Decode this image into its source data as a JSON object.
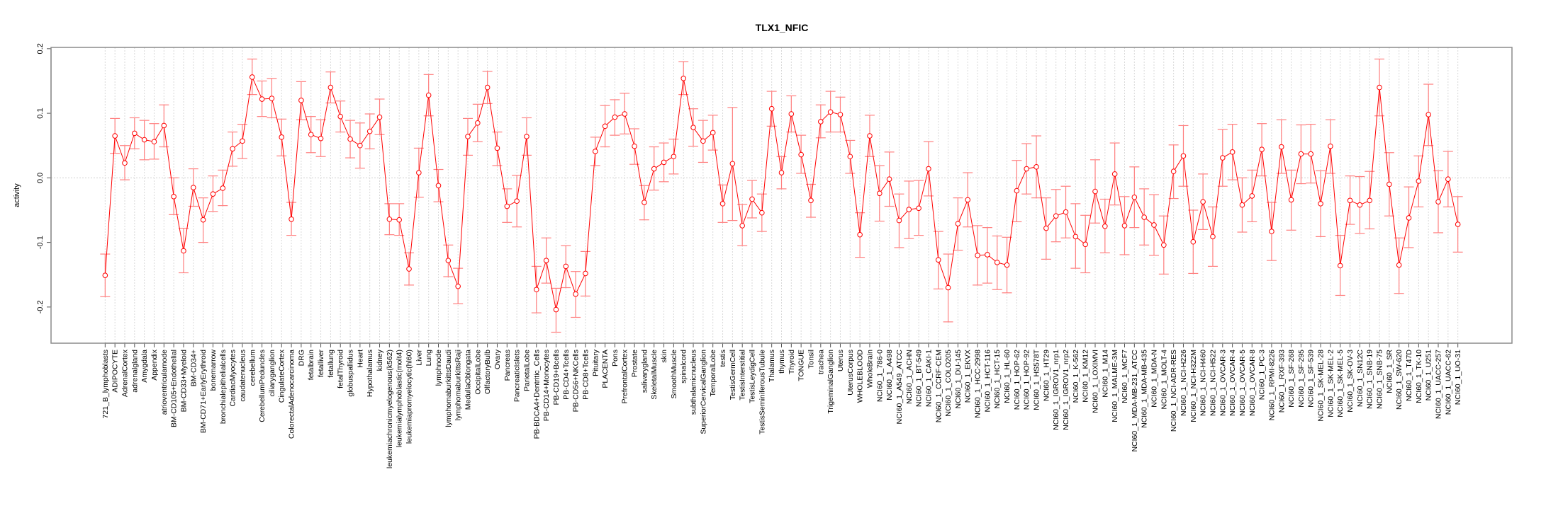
{
  "chart_data": {
    "type": "line",
    "title": "TLX1_NFIC",
    "xlabel": "",
    "ylabel": "activity",
    "ylim": [
      -0.256,
      0.202
    ],
    "yticks": [
      "-0.2",
      "-0.1",
      "0.0",
      "0.1",
      "0.2"
    ],
    "ytick_values": [
      -0.2,
      -0.1,
      0.0,
      0.1,
      0.2
    ],
    "grid": true,
    "series_color": "#ff0000",
    "errorbar_color": "#ff8080",
    "grid_color": "#d9d9d9",
    "categories": [
      "721_B_lymphoblasts",
      "ADIPOCYTE",
      "AdrenalCortex",
      "adrenalgland",
      "Amygdala",
      "Appendix",
      "atrioventricularnode",
      "BM-CD105+Endothelial",
      "BM-CD33+Myeloid",
      "BM-CD34+",
      "BM-CD71+EarlyErythroid",
      "bonemarrow",
      "bronchialepithelialcells",
      "CardiacMyocytes",
      "caudatenucleus",
      "cerebellum",
      "CerebellumPeduncles",
      "ciliaryganglion",
      "CingulateCortex",
      "ColorectalAdenocarcinoma",
      "DRG",
      "fetalbrain",
      "fetalliver",
      "fetallung",
      "fetalThyroid",
      "globuspallidus",
      "Heart",
      "Hypothalamus",
      "kidney",
      "leukemiachronicmyelogenous(k562)",
      "leukemialymphoblastic(molt4)",
      "leukemiapromyelocytic(hl60)",
      "Liver",
      "Lung",
      "lymphnode",
      "lymphomaburkittsDaudi",
      "lymphomaburkittsRaji",
      "MedullaOblongata",
      "OccipitalLobe",
      "OlfactoryBulb",
      "Ovary",
      "Pancreas",
      "PancreaticIslets",
      "ParietalLobe",
      "PB-BDCA4+Dentritic_Cells",
      "PB-CD14+Monocytes",
      "PB-CD19+Bcells",
      "PB-CD4+Tcells",
      "PB-CD56+NKCells",
      "PB-CD8+Tcells",
      "Pituitary",
      "PLACENTA",
      "Pons",
      "PrefrontalCortex",
      "Prostate",
      "salivarygland",
      "SkeletalMuscle",
      "skin",
      "SmoothMuscle",
      "spinalcord",
      "subthalamicnucleus",
      "SuperiorCervicalGanglion",
      "TemporalLobe",
      "testis",
      "TestisGermCell",
      "TestisInterstitial",
      "TestisLeydigCell",
      "TestisSeminiferousTubule",
      "Thalamus",
      "thymus",
      "Thyroid",
      "TONGUE",
      "Tonsil",
      "trachea",
      "TrigeminalGanglion",
      "Uterus",
      "UterusCorpus",
      "WHOLEBLOOD",
      "WholeBrain",
      "NCI60_1_786-0",
      "NCI60_1_A498",
      "NCI60_1_A549_ATCC",
      "NCI60_1_ACHN",
      "NCI60_1_BT-549",
      "NCI60_1_CAKI-1",
      "NCI60_1_CCRF-CEM",
      "NCI60_1_COLO205",
      "NCI60_1_DU-145",
      "NCI60_1_EKVX",
      "NCI60_1_HCC-2998",
      "NCI60_1_HCT-116",
      "NCI60_1_HCT-15",
      "NCI60_1_HL-60",
      "NCI60_1_HOP-62",
      "NCI60_1_HOP-92",
      "NCI60_1_HS578T",
      "NCI60_1_HT29",
      "NCI60_1_IGROV1_nrp1",
      "NCI60_1_IGROV1_nrp2",
      "NCI60_1_K-562",
      "NCI60_1_KM12",
      "NCI60_1_LOXIMVI",
      "NCI60_1_M14",
      "NCI60_1_MALME-3M",
      "NCI60_1_MCF7",
      "NCI60_1_MDA-MB-231_ATCC",
      "NCI60_1_MDA-MB-435",
      "NCI60_1_MDA-N",
      "NCI60_1_MOLT-4",
      "NCI60_1_NCI-ADR-RES",
      "NCI60_1_NCI-H226",
      "NCI60_1_NCI-H322M",
      "NCI60_1_NCI-H460",
      "NCI60_1_NCI-H522",
      "NCI60_1_OVCAR-3",
      "NCI60_1_OVCAR-4",
      "NCI60_1_OVCAR-5",
      "NCI60_1_OVCAR-8",
      "NCI60_1_PC-3",
      "NCI60_1_RPMI-8226",
      "NCI60_1_RXF-393",
      "NCI60_1_SF-268",
      "NCI60_1_SF-295",
      "NCI60_1_SF-539",
      "NCI60_1_SK-MEL-28",
      "NCI60_1_SK-MEL-2",
      "NCI60_1_SK-MEL-5",
      "NCI60_1_SK-OV-3",
      "NCI60_1_SN12C",
      "NCI60_1_SNB-19",
      "NCI60_1_SNB-75",
      "NCI60_1_SR",
      "NCI60_1_SW-620",
      "NCI60_1_T47D",
      "NCI60_1_TK-10",
      "NCI60_1_U251",
      "NCI60_1_UACC-257",
      "NCI60_1_UACC-62",
      "NCI60_1_UO-31"
    ],
    "series": [
      {
        "name": "activity",
        "values": [
          -0.151,
          0.065,
          0.023,
          0.069,
          0.059,
          0.056,
          0.081,
          -0.029,
          -0.113,
          -0.015,
          -0.065,
          -0.025,
          -0.016,
          0.045,
          0.057,
          0.156,
          0.122,
          0.123,
          0.063,
          -0.064,
          0.12,
          0.067,
          0.061,
          0.14,
          0.095,
          0.06,
          0.05,
          0.072,
          0.094,
          -0.064,
          -0.065,
          -0.141,
          0.008,
          0.128,
          -0.012,
          -0.128,
          -0.168,
          0.064,
          0.085,
          0.14,
          0.046,
          -0.044,
          -0.036,
          0.064,
          -0.173,
          -0.128,
          -0.204,
          -0.137,
          -0.18,
          -0.148,
          0.041,
          0.08,
          0.094,
          0.099,
          0.049,
          -0.038,
          0.014,
          0.024,
          0.033,
          0.154,
          0.078,
          0.057,
          0.07,
          -0.04,
          0.022,
          -0.074,
          -0.033,
          -0.054,
          0.107,
          0.008,
          0.099,
          0.036,
          -0.035,
          0.087,
          0.102,
          0.098,
          0.033,
          -0.088,
          0.065,
          -0.024,
          -0.002,
          -0.066,
          -0.049,
          -0.047,
          0.014,
          -0.127,
          -0.17,
          -0.071,
          -0.034,
          -0.12,
          -0.119,
          -0.131,
          -0.135,
          -0.02,
          0.014,
          0.017,
          -0.078,
          -0.059,
          -0.053,
          -0.091,
          -0.103,
          -0.021,
          -0.075,
          0.006,
          -0.074,
          -0.03,
          -0.061,
          -0.073,
          -0.104,
          0.01,
          0.034,
          -0.099,
          -0.037,
          -0.091,
          0.031,
          0.04,
          -0.042,
          -0.028,
          0.044,
          -0.083,
          0.048,
          -0.034,
          0.037,
          0.037,
          -0.04,
          0.049,
          -0.136,
          -0.035,
          -0.042,
          -0.035,
          0.14,
          -0.01,
          -0.135,
          -0.062,
          -0.005,
          0.098,
          -0.037,
          -0.002,
          -0.072
        ],
        "upper": [
          -0.118,
          0.092,
          0.05,
          0.093,
          0.089,
          0.084,
          0.113,
          0.0,
          -0.078,
          0.014,
          -0.031,
          0.003,
          0.012,
          0.071,
          0.083,
          0.184,
          0.15,
          0.154,
          0.091,
          -0.038,
          0.149,
          0.095,
          0.09,
          0.164,
          0.119,
          0.089,
          0.085,
          0.099,
          0.122,
          -0.04,
          -0.04,
          -0.116,
          0.046,
          0.16,
          0.013,
          -0.104,
          -0.14,
          0.092,
          0.114,
          0.165,
          0.071,
          -0.017,
          0.004,
          0.093,
          -0.137,
          -0.093,
          -0.171,
          -0.105,
          -0.145,
          -0.114,
          0.063,
          0.112,
          0.121,
          0.131,
          0.076,
          -0.012,
          0.048,
          0.054,
          0.06,
          0.18,
          0.107,
          0.089,
          0.097,
          -0.011,
          0.109,
          -0.041,
          -0.004,
          -0.025,
          0.134,
          0.033,
          0.127,
          0.066,
          -0.01,
          0.113,
          0.134,
          0.125,
          0.058,
          -0.054,
          0.097,
          0.019,
          0.04,
          -0.025,
          -0.005,
          -0.004,
          0.056,
          -0.083,
          -0.118,
          -0.031,
          0.008,
          -0.074,
          -0.077,
          -0.09,
          -0.092,
          0.027,
          0.053,
          0.065,
          -0.031,
          -0.018,
          -0.013,
          -0.04,
          -0.058,
          0.028,
          -0.033,
          0.054,
          -0.029,
          0.017,
          -0.017,
          -0.026,
          -0.059,
          0.051,
          0.081,
          -0.05,
          0.006,
          -0.045,
          0.075,
          0.083,
          0.0,
          0.012,
          0.084,
          -0.038,
          0.09,
          0.012,
          0.082,
          0.083,
          0.011,
          0.09,
          -0.089,
          0.003,
          0.002,
          0.01,
          0.184,
          0.039,
          -0.093,
          -0.014,
          0.034,
          0.145,
          0.011,
          0.041,
          -0.029
        ],
        "lower": [
          -0.184,
          0.038,
          -0.003,
          0.045,
          0.028,
          0.029,
          0.048,
          -0.057,
          -0.147,
          -0.044,
          -0.1,
          -0.052,
          -0.043,
          0.018,
          0.03,
          0.129,
          0.095,
          0.093,
          0.034,
          -0.089,
          0.09,
          0.039,
          0.033,
          0.116,
          0.071,
          0.031,
          0.015,
          0.045,
          0.067,
          -0.088,
          -0.089,
          -0.166,
          -0.03,
          0.096,
          -0.037,
          -0.153,
          -0.195,
          0.035,
          0.056,
          0.115,
          0.019,
          -0.069,
          -0.076,
          0.035,
          -0.209,
          -0.163,
          -0.239,
          -0.17,
          -0.216,
          -0.183,
          0.019,
          0.048,
          0.066,
          0.068,
          0.021,
          -0.065,
          -0.019,
          -0.006,
          0.006,
          0.129,
          0.049,
          0.024,
          0.043,
          -0.069,
          -0.066,
          -0.105,
          -0.062,
          -0.083,
          0.08,
          -0.017,
          0.071,
          0.007,
          -0.061,
          0.062,
          0.071,
          0.071,
          0.007,
          -0.123,
          0.033,
          -0.067,
          -0.044,
          -0.108,
          -0.094,
          -0.089,
          -0.028,
          -0.172,
          -0.223,
          -0.112,
          -0.076,
          -0.166,
          -0.163,
          -0.173,
          -0.178,
          -0.068,
          -0.025,
          -0.031,
          -0.126,
          -0.099,
          -0.093,
          -0.14,
          -0.147,
          -0.07,
          -0.116,
          -0.042,
          -0.119,
          -0.077,
          -0.104,
          -0.12,
          -0.149,
          -0.032,
          -0.013,
          -0.148,
          -0.08,
          -0.137,
          -0.013,
          -0.003,
          -0.084,
          -0.068,
          0.003,
          -0.128,
          0.007,
          -0.081,
          -0.009,
          -0.008,
          -0.091,
          0.007,
          -0.182,
          -0.072,
          -0.086,
          -0.079,
          0.096,
          -0.059,
          -0.179,
          -0.108,
          -0.045,
          0.05,
          -0.085,
          -0.045,
          -0.115
        ]
      }
    ]
  }
}
